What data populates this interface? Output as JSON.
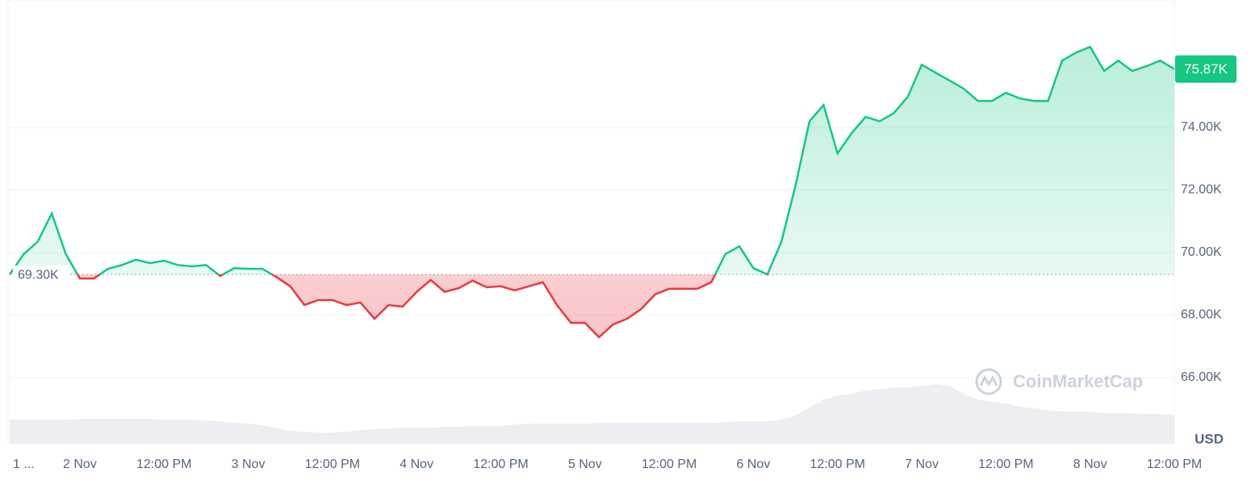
{
  "chart_data": {
    "type": "line",
    "currency": "USD",
    "watermark": "CoinMarketCap",
    "categories": [
      null,
      "1 ...",
      null,
      null,
      null,
      "2 Nov",
      null,
      null,
      null,
      null,
      null,
      "12:00 PM",
      null,
      null,
      null,
      null,
      null,
      "3 Nov",
      null,
      null,
      null,
      null,
      null,
      "12:00 PM",
      null,
      null,
      null,
      null,
      null,
      "4 Nov",
      null,
      null,
      null,
      null,
      null,
      "12:00 PM",
      null,
      null,
      null,
      null,
      null,
      "5 Nov",
      null,
      null,
      null,
      null,
      null,
      "12:00 PM",
      null,
      null,
      null,
      null,
      null,
      "6 Nov",
      null,
      null,
      null,
      null,
      null,
      "12:00 PM",
      null,
      null,
      null,
      null,
      null,
      "7 Nov",
      null,
      null,
      null,
      null,
      null,
      "12:00 PM",
      null,
      null,
      null,
      null,
      null,
      "8 Nov",
      null,
      null,
      null,
      null,
      null,
      "12:00 PM"
    ],
    "series": [
      {
        "name": "Price",
        "color": "#16c784",
        "color_below": "#ea3943",
        "values": [
          69300,
          69950,
          70350,
          71250,
          69950,
          69170,
          69170,
          69480,
          69600,
          69770,
          69660,
          69740,
          69600,
          69560,
          69600,
          69250,
          69500,
          69480,
          69480,
          69220,
          68920,
          68320,
          68480,
          68480,
          68320,
          68400,
          67880,
          68320,
          68270,
          68740,
          69120,
          68740,
          68860,
          69100,
          68890,
          68920,
          68790,
          68920,
          69050,
          68320,
          67750,
          67750,
          67290,
          67700,
          67880,
          68190,
          68660,
          68840,
          68840,
          68840,
          69050,
          69950,
          70200,
          69500,
          69300,
          70350,
          72140,
          74200,
          74720,
          73170,
          73820,
          74340,
          74200,
          74460,
          74980,
          76010,
          75750,
          75500,
          75240,
          74850,
          74850,
          75110,
          74930,
          74850,
          74850,
          76140,
          76400,
          76580,
          75810,
          76140,
          75810,
          75960,
          76140,
          75870
        ]
      },
      {
        "name": "Volume",
        "color": "#e5e7eb",
        "axis": "volume",
        "values": [
          30,
          30,
          30,
          30,
          30,
          31,
          31,
          31,
          31,
          31,
          31,
          30,
          30,
          30,
          29,
          28,
          26,
          25,
          23,
          20,
          16,
          15,
          14,
          14,
          15,
          17,
          18,
          19,
          20,
          20,
          20,
          21,
          21,
          22,
          22,
          22,
          24,
          25,
          25,
          25,
          25,
          25,
          26,
          26,
          26,
          26,
          26,
          26,
          26,
          26,
          26,
          27,
          28,
          28,
          28,
          30,
          35,
          45,
          55,
          60,
          62,
          66,
          68,
          70,
          70,
          72,
          74,
          72,
          62,
          55,
          52,
          50,
          46,
          44,
          42,
          40,
          40,
          40,
          38,
          38,
          38,
          37,
          37,
          36
        ]
      }
    ],
    "baseline": 69300,
    "baseline_label": "69.30K",
    "current": 75870,
    "current_label": "75.87K",
    "ylim": [
      63880,
      78080
    ],
    "volume_lim": [
      0,
      100
    ],
    "yticks": [
      {
        "value": 66000,
        "label": "66.00K"
      },
      {
        "value": 68000,
        "label": "68.00K"
      },
      {
        "value": 70000,
        "label": "70.00K"
      },
      {
        "value": 72000,
        "label": "72.00K"
      },
      {
        "value": 74000,
        "label": "74.00K"
      }
    ],
    "grid": true
  }
}
